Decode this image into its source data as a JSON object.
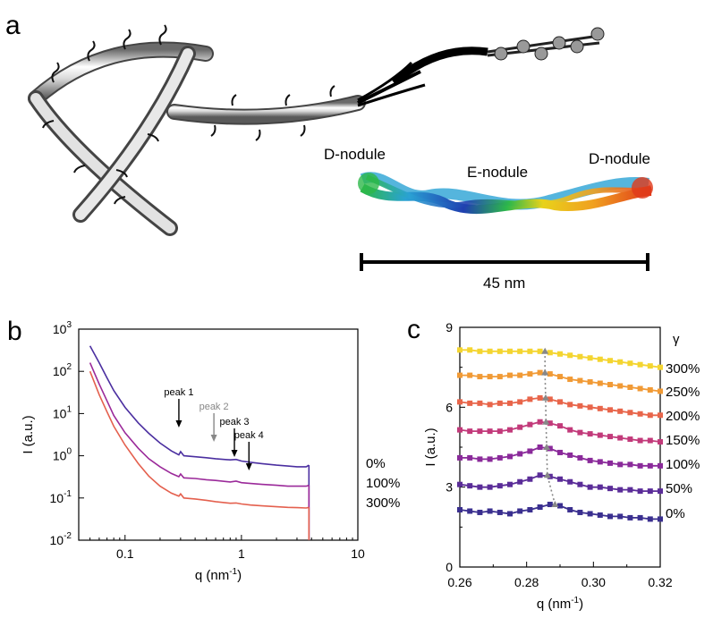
{
  "panels": {
    "a": {
      "letter": "a",
      "labels": {
        "d_left": "D-nodule",
        "e": "E-nodule",
        "d_right": "D-nodule"
      },
      "scale_bar": "45 nm",
      "ribbon_colors": [
        "#1f3fb0",
        "#2aa2d4",
        "#2db84a",
        "#e8d21a",
        "#f0a020",
        "#e03a1a"
      ]
    },
    "b": {
      "letter": "b"
    },
    "c": {
      "letter": "c"
    }
  },
  "chart_data": [
    {
      "panel": "b",
      "type": "line",
      "xlabel": "q (nm",
      "xlabel_sup": "-1",
      "xlabel_close": ")",
      "ylabel": "I (a.u.)",
      "xscale": "log",
      "yscale": "log",
      "xlim": [
        0.04,
        10
      ],
      "ylim": [
        0.01,
        1000
      ],
      "xticks": [
        {
          "v": 0.1,
          "label": "0.1"
        },
        {
          "v": 1,
          "label": "1"
        },
        {
          "v": 10,
          "label": "10"
        }
      ],
      "yticks": [
        {
          "v": 0.01,
          "base": "10",
          "exp": "-2"
        },
        {
          "v": 0.1,
          "base": "10",
          "exp": "-1"
        },
        {
          "v": 1,
          "base": "10",
          "exp": "0"
        },
        {
          "v": 10,
          "base": "10",
          "exp": "1"
        },
        {
          "v": 100,
          "base": "10",
          "exp": "2"
        },
        {
          "v": 1000,
          "base": "10",
          "exp": "3"
        }
      ],
      "series": [
        {
          "name": "0%",
          "color": "#4b2fa0",
          "x": [
            0.05,
            0.06,
            0.07,
            0.08,
            0.1,
            0.13,
            0.16,
            0.2,
            0.25,
            0.29,
            0.3,
            0.32,
            0.4,
            0.5,
            0.6,
            0.8,
            0.9,
            1.0,
            1.2,
            1.5,
            2,
            2.5,
            3,
            3.6,
            3.8
          ],
          "y": [
            400,
            160,
            70,
            35,
            14,
            6,
            3.4,
            2.0,
            1.3,
            1.05,
            1.25,
            1.0,
            0.95,
            0.9,
            0.85,
            0.8,
            0.82,
            0.75,
            0.7,
            0.65,
            0.6,
            0.57,
            0.55,
            0.55,
            0.6
          ]
        },
        {
          "name": "100%",
          "color": "#9b2a9a",
          "x": [
            0.05,
            0.06,
            0.07,
            0.08,
            0.1,
            0.13,
            0.16,
            0.2,
            0.25,
            0.29,
            0.3,
            0.32,
            0.4,
            0.5,
            0.6,
            0.8,
            0.9,
            1.0,
            1.2,
            1.5,
            2,
            2.5,
            3,
            3.6,
            3.8
          ],
          "y": [
            160,
            50,
            20,
            9,
            3.5,
            1.5,
            0.85,
            0.55,
            0.38,
            0.32,
            0.37,
            0.3,
            0.29,
            0.27,
            0.26,
            0.24,
            0.25,
            0.23,
            0.22,
            0.21,
            0.2,
            0.19,
            0.19,
            0.19,
            0.2
          ]
        },
        {
          "name": "300%",
          "color": "#e4604e",
          "x": [
            0.05,
            0.06,
            0.07,
            0.08,
            0.1,
            0.13,
            0.16,
            0.2,
            0.25,
            0.29,
            0.3,
            0.32,
            0.4,
            0.5,
            0.6,
            0.8,
            0.9,
            1.0,
            1.2,
            1.5,
            2,
            2.5,
            3,
            3.6,
            3.8
          ],
          "y": [
            100,
            28,
            11,
            5,
            1.8,
            0.65,
            0.33,
            0.19,
            0.13,
            0.11,
            0.125,
            0.1,
            0.095,
            0.088,
            0.082,
            0.075,
            0.076,
            0.072,
            0.068,
            0.065,
            0.062,
            0.06,
            0.059,
            0.058,
            0.06
          ]
        }
      ],
      "annotations": [
        {
          "text": "peak 1",
          "x": 0.29,
          "color": "#000000",
          "arrow": true
        },
        {
          "text": "peak 2",
          "x": 0.58,
          "color": "#888888",
          "arrow": true
        },
        {
          "text": "peak 3",
          "x": 0.87,
          "color": "#000000",
          "arrow": true
        },
        {
          "text": "peak 4",
          "x": 1.16,
          "color": "#000000",
          "arrow": true
        }
      ],
      "series_labels": [
        "0%",
        "100%",
        "300%"
      ]
    },
    {
      "panel": "c",
      "type": "line",
      "xlabel": "q (nm",
      "xlabel_sup": "-1",
      "xlabel_close": ")",
      "ylabel": "I (a.u.)",
      "xlim": [
        0.26,
        0.32
      ],
      "ylim": [
        0,
        9
      ],
      "xticks": [
        {
          "v": 0.26,
          "label": "0.26"
        },
        {
          "v": 0.28,
          "label": "0.28"
        },
        {
          "v": 0.3,
          "label": "0.30"
        },
        {
          "v": 0.32,
          "label": "0.32"
        }
      ],
      "yticks": [
        {
          "v": 0,
          "label": "0"
        },
        {
          "v": 3,
          "label": "3"
        },
        {
          "v": 6,
          "label": "6"
        },
        {
          "v": 9,
          "label": "9"
        }
      ],
      "legend_title": "γ",
      "x": [
        0.26,
        0.263,
        0.266,
        0.269,
        0.272,
        0.275,
        0.278,
        0.281,
        0.284,
        0.287,
        0.29,
        0.293,
        0.296,
        0.299,
        0.302,
        0.305,
        0.308,
        0.311,
        0.314,
        0.317,
        0.32
      ],
      "series": [
        {
          "name": "0%",
          "color": "#3a2f8f",
          "y": [
            2.15,
            2.1,
            2.05,
            2.1,
            2.05,
            2.0,
            2.1,
            2.15,
            2.25,
            2.35,
            2.3,
            2.15,
            2.05,
            2.0,
            1.95,
            1.9,
            1.9,
            1.85,
            1.85,
            1.8,
            1.8
          ]
        },
        {
          "name": "50%",
          "color": "#5a2c98",
          "y": [
            3.1,
            3.05,
            3.0,
            3.0,
            3.05,
            3.1,
            3.2,
            3.3,
            3.45,
            3.4,
            3.3,
            3.2,
            3.1,
            3.0,
            3.0,
            2.95,
            2.9,
            2.9,
            2.85,
            2.85,
            2.85
          ]
        },
        {
          "name": "100%",
          "color": "#8a2a9a",
          "y": [
            4.1,
            4.1,
            4.05,
            4.05,
            4.1,
            4.15,
            4.25,
            4.35,
            4.5,
            4.45,
            4.3,
            4.2,
            4.1,
            4.0,
            3.95,
            3.9,
            3.85,
            3.85,
            3.8,
            3.8,
            3.8
          ]
        },
        {
          "name": "150%",
          "color": "#c23a7a",
          "y": [
            5.15,
            5.1,
            5.1,
            5.1,
            5.1,
            5.15,
            5.25,
            5.35,
            5.45,
            5.4,
            5.3,
            5.15,
            5.05,
            5.0,
            4.95,
            4.9,
            4.85,
            4.8,
            4.75,
            4.75,
            4.7
          ]
        },
        {
          "name": "200%",
          "color": "#e8654a",
          "y": [
            6.2,
            6.15,
            6.15,
            6.1,
            6.15,
            6.15,
            6.2,
            6.3,
            6.35,
            6.3,
            6.2,
            6.1,
            6.05,
            6.0,
            5.95,
            5.9,
            5.85,
            5.8,
            5.75,
            5.7,
            5.7
          ]
        },
        {
          "name": "250%",
          "color": "#f19a35",
          "y": [
            7.2,
            7.2,
            7.15,
            7.15,
            7.15,
            7.2,
            7.2,
            7.25,
            7.3,
            7.25,
            7.15,
            7.05,
            7.0,
            6.95,
            6.9,
            6.85,
            6.8,
            6.75,
            6.7,
            6.65,
            6.6
          ]
        },
        {
          "name": "300%",
          "color": "#f4d530",
          "y": [
            8.15,
            8.15,
            8.1,
            8.1,
            8.1,
            8.1,
            8.1,
            8.1,
            8.1,
            8.05,
            8.0,
            7.95,
            7.9,
            7.85,
            7.8,
            7.75,
            7.7,
            7.65,
            7.6,
            7.55,
            7.5
          ]
        }
      ],
      "peak_trace": {
        "color": "#888888",
        "x": [
          0.2885,
          0.2862,
          0.286,
          0.2858,
          0.2857,
          0.2855,
          0.2855
        ],
        "y": [
          2.35,
          3.45,
          4.5,
          5.45,
          6.35,
          7.3,
          8.1
        ]
      },
      "labels": [
        "300%",
        "250%",
        "200%",
        "150%",
        "100%",
        "50%",
        "0%"
      ]
    }
  ]
}
